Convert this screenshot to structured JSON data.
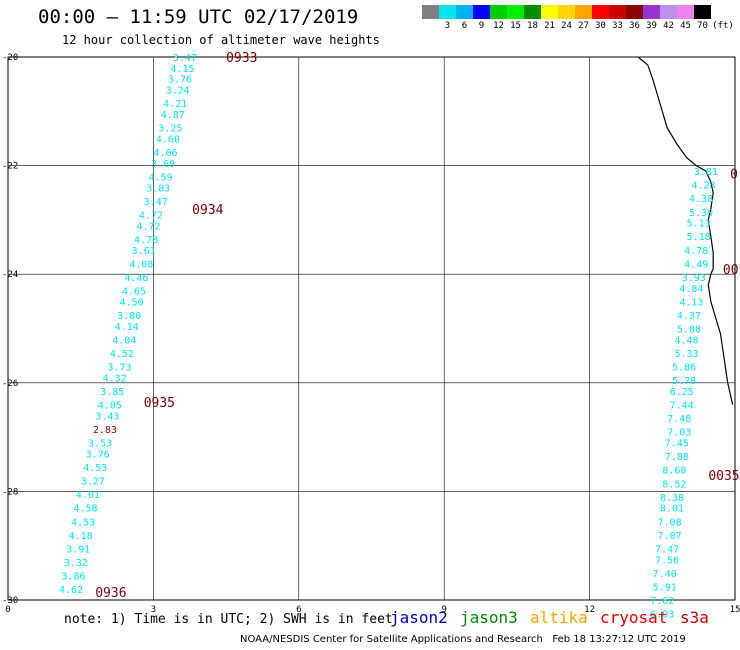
{
  "header": {
    "title": "00:00 – 11:59 UTC 02/17/2019",
    "subtitle": "12 hour collection of altimeter wave heights"
  },
  "legend": {
    "unit": "(ft)",
    "items": [
      {
        "color": "#808080",
        "label": ""
      },
      {
        "color": "#00e5ee",
        "label": "3"
      },
      {
        "color": "#00b2ee",
        "label": "6"
      },
      {
        "color": "#0000ff",
        "label": "9"
      },
      {
        "color": "#00cd00",
        "label": "12"
      },
      {
        "color": "#00ee00",
        "label": "15"
      },
      {
        "color": "#008b00",
        "label": "18"
      },
      {
        "color": "#ffff00",
        "label": "21"
      },
      {
        "color": "#ffd700",
        "label": "24"
      },
      {
        "color": "#ffa500",
        "label": "27"
      },
      {
        "color": "#ff0000",
        "label": "30"
      },
      {
        "color": "#cd0000",
        "label": "33"
      },
      {
        "color": "#8b0000",
        "label": "36"
      },
      {
        "color": "#9a32cd",
        "label": "39"
      },
      {
        "color": "#bf8fef",
        "label": "42"
      },
      {
        "color": "#ee82ee",
        "label": "45"
      },
      {
        "color": "#000000",
        "label": "70"
      }
    ]
  },
  "axes": {
    "xlim": [
      0,
      15
    ],
    "ylim": [
      -30,
      -20
    ],
    "x_ticks": [
      "0",
      "3",
      "6",
      "9",
      "12",
      "15"
    ],
    "y_ticks": [
      "-20",
      "-22",
      "-24",
      "-26",
      "-28",
      "-30"
    ]
  },
  "chart_data": {
    "type": "scatter",
    "grid": true,
    "color_map": {
      "cyan": "#00e5ee",
      "red": "#8b0000"
    },
    "tracks": [
      {
        "times": [
          {
            "label": "0933",
            "lon": 4.5,
            "lat": -20.0
          },
          {
            "label": "0934",
            "lon": 3.8,
            "lat": -22.8
          },
          {
            "label": "0935",
            "lon": 2.8,
            "lat": -26.35
          },
          {
            "label": "0936",
            "lon": 1.8,
            "lat": -29.85
          }
        ],
        "points": [
          {
            "lon": 3.65,
            "lat": -20.0,
            "v": "3.47"
          },
          {
            "lon": 3.6,
            "lat": -20.2,
            "v": "4.15"
          },
          {
            "lon": 3.55,
            "lat": -20.4,
            "v": "3.76"
          },
          {
            "lon": 3.5,
            "lat": -20.6,
            "v": "3.24"
          },
          {
            "lon": 3.45,
            "lat": -20.85,
            "v": "4.21"
          },
          {
            "lon": 3.4,
            "lat": -21.05,
            "v": "4.87"
          },
          {
            "lon": 3.35,
            "lat": -21.3,
            "v": "3.25"
          },
          {
            "lon": 3.3,
            "lat": -21.5,
            "v": "4.60"
          },
          {
            "lon": 3.25,
            "lat": -21.75,
            "v": "4.06"
          },
          {
            "lon": 3.2,
            "lat": -21.95,
            "v": "3.69"
          },
          {
            "lon": 3.15,
            "lat": -22.2,
            "v": "4.59"
          },
          {
            "lon": 3.1,
            "lat": -22.4,
            "v": "3.83"
          },
          {
            "lon": 3.05,
            "lat": -22.65,
            "v": "3.47"
          },
          {
            "lon": 2.95,
            "lat": -22.9,
            "v": "4.72"
          },
          {
            "lon": 2.9,
            "lat": -23.1,
            "v": "4.72"
          },
          {
            "lon": 2.85,
            "lat": -23.35,
            "v": "4.78"
          },
          {
            "lon": 2.8,
            "lat": -23.55,
            "v": "3.61"
          },
          {
            "lon": 2.75,
            "lat": -23.8,
            "v": "4.08"
          },
          {
            "lon": 2.65,
            "lat": -24.05,
            "v": "4.46"
          },
          {
            "lon": 2.6,
            "lat": -24.3,
            "v": "4.65"
          },
          {
            "lon": 2.55,
            "lat": -24.5,
            "v": "4.50"
          },
          {
            "lon": 2.5,
            "lat": -24.75,
            "v": "3.80"
          },
          {
            "lon": 2.45,
            "lat": -24.95,
            "v": "4.14"
          },
          {
            "lon": 2.4,
            "lat": -25.2,
            "v": "4.04"
          },
          {
            "lon": 2.35,
            "lat": -25.45,
            "v": "4.52"
          },
          {
            "lon": 2.3,
            "lat": -25.7,
            "v": "3.73"
          },
          {
            "lon": 2.2,
            "lat": -25.9,
            "v": "4.32"
          },
          {
            "lon": 2.15,
            "lat": -26.15,
            "v": "3.85"
          },
          {
            "lon": 2.1,
            "lat": -26.4,
            "v": "4.05"
          },
          {
            "lon": 2.05,
            "lat": -26.6,
            "v": "3.43"
          },
          {
            "lon": 2.0,
            "lat": -26.85,
            "v": "2.83",
            "cls": "red"
          },
          {
            "lon": 1.9,
            "lat": -27.1,
            "v": "3.53"
          },
          {
            "lon": 1.85,
            "lat": -27.3,
            "v": "3.76"
          },
          {
            "lon": 1.8,
            "lat": -27.55,
            "v": "4.53"
          },
          {
            "lon": 1.75,
            "lat": -27.8,
            "v": "3.27"
          },
          {
            "lon": 1.65,
            "lat": -28.05,
            "v": "4.01"
          },
          {
            "lon": 1.6,
            "lat": -28.3,
            "v": "4.58"
          },
          {
            "lon": 1.55,
            "lat": -28.55,
            "v": "4.53"
          },
          {
            "lon": 1.5,
            "lat": -28.8,
            "v": "4.18"
          },
          {
            "lon": 1.45,
            "lat": -29.05,
            "v": "3.91"
          },
          {
            "lon": 1.4,
            "lat": -29.3,
            "v": "3.32"
          },
          {
            "lon": 1.35,
            "lat": -29.55,
            "v": "3.86"
          },
          {
            "lon": 1.3,
            "lat": -29.8,
            "v": "4.62"
          }
        ]
      },
      {
        "times": [
          {
            "label": "0",
            "lon": 14.9,
            "lat": -22.15
          },
          {
            "label": "00",
            "lon": 14.75,
            "lat": -23.9
          },
          {
            "label": "0035",
            "lon": 14.45,
            "lat": -27.7
          }
        ],
        "points": [
          {
            "lon": 14.4,
            "lat": -22.1,
            "v": "3.81"
          },
          {
            "lon": 14.35,
            "lat": -22.35,
            "v": "4.23"
          },
          {
            "lon": 14.3,
            "lat": -22.6,
            "v": "4.38"
          },
          {
            "lon": 14.3,
            "lat": -22.85,
            "v": "5.30"
          },
          {
            "lon": 14.25,
            "lat": -23.05,
            "v": "5.13"
          },
          {
            "lon": 14.25,
            "lat": -23.3,
            "v": "5.18"
          },
          {
            "lon": 14.2,
            "lat": -23.55,
            "v": "4.78"
          },
          {
            "lon": 14.2,
            "lat": -23.8,
            "v": "4.49"
          },
          {
            "lon": 14.15,
            "lat": -24.05,
            "v": "3.93"
          },
          {
            "lon": 14.1,
            "lat": -24.25,
            "v": "4.84"
          },
          {
            "lon": 14.1,
            "lat": -24.5,
            "v": "4.13"
          },
          {
            "lon": 14.05,
            "lat": -24.75,
            "v": "4.37"
          },
          {
            "lon": 14.05,
            "lat": -25.0,
            "v": "5.08"
          },
          {
            "lon": 14.0,
            "lat": -25.2,
            "v": "4.48"
          },
          {
            "lon": 14.0,
            "lat": -25.45,
            "v": "5.33"
          },
          {
            "lon": 13.95,
            "lat": -25.7,
            "v": "5.86"
          },
          {
            "lon": 13.95,
            "lat": -25.95,
            "v": "5.78"
          },
          {
            "lon": 13.9,
            "lat": -26.15,
            "v": "6.25"
          },
          {
            "lon": 13.9,
            "lat": -26.4,
            "v": "7.44"
          },
          {
            "lon": 13.85,
            "lat": -26.65,
            "v": "7.48"
          },
          {
            "lon": 13.85,
            "lat": -26.9,
            "v": "7.03"
          },
          {
            "lon": 13.8,
            "lat": -27.1,
            "v": "7.45"
          },
          {
            "lon": 13.8,
            "lat": -27.35,
            "v": "7.88"
          },
          {
            "lon": 13.75,
            "lat": -27.6,
            "v": "8.68"
          },
          {
            "lon": 13.75,
            "lat": -27.85,
            "v": "8.52"
          },
          {
            "lon": 13.7,
            "lat": -28.1,
            "v": "8.38"
          },
          {
            "lon": 13.7,
            "lat": -28.3,
            "v": "8.01"
          },
          {
            "lon": 13.65,
            "lat": -28.55,
            "v": "7.08"
          },
          {
            "lon": 13.65,
            "lat": -28.8,
            "v": "7.07"
          },
          {
            "lon": 13.6,
            "lat": -29.05,
            "v": "7.47"
          },
          {
            "lon": 13.6,
            "lat": -29.25,
            "v": "7.56"
          },
          {
            "lon": 13.55,
            "lat": -29.5,
            "v": "7.40"
          },
          {
            "lon": 13.55,
            "lat": -29.75,
            "v": "5.91"
          },
          {
            "lon": 13.5,
            "lat": -30.0,
            "v": "7.62"
          },
          {
            "lon": 13.5,
            "lat": -30.25,
            "v": "6.93"
          }
        ]
      }
    ],
    "coastline": [
      [
        13.0,
        -20.0
      ],
      [
        13.2,
        -20.15
      ],
      [
        13.3,
        -20.4
      ],
      [
        13.4,
        -20.7
      ],
      [
        13.5,
        -21.0
      ],
      [
        13.6,
        -21.3
      ],
      [
        13.8,
        -21.6
      ],
      [
        14.0,
        -21.85
      ],
      [
        14.2,
        -22.0
      ],
      [
        14.4,
        -22.1
      ],
      [
        14.5,
        -22.3
      ],
      [
        14.55,
        -22.5
      ],
      [
        14.5,
        -22.8
      ],
      [
        14.45,
        -23.0
      ],
      [
        14.5,
        -23.3
      ],
      [
        14.55,
        -23.6
      ],
      [
        14.55,
        -23.9
      ],
      [
        14.5,
        -24.0
      ],
      [
        14.45,
        -24.2
      ],
      [
        14.5,
        -24.5
      ],
      [
        14.6,
        -24.8
      ],
      [
        14.7,
        -25.1
      ],
      [
        14.75,
        -25.4
      ],
      [
        14.8,
        -25.7
      ],
      [
        14.85,
        -26.0
      ],
      [
        14.9,
        -26.2
      ],
      [
        14.95,
        -26.4
      ]
    ]
  },
  "footer": {
    "note": "note: 1) Time is in UTC; 2) SWH is in feet",
    "satellites": [
      {
        "name": "jason2",
        "color": "#0000cd"
      },
      {
        "name": "jason3",
        "color": "#008b00"
      },
      {
        "name": "altika",
        "color": "#ffa500"
      },
      {
        "name": "cryosat",
        "color": "#ee0000"
      },
      {
        "name": "s3a",
        "color": "#cd0000"
      }
    ],
    "credit": "NOAA/NESDIS Center for Satellite Applications and Research",
    "timestamp": "Feb 18 13:27:12 UTC 2019"
  }
}
